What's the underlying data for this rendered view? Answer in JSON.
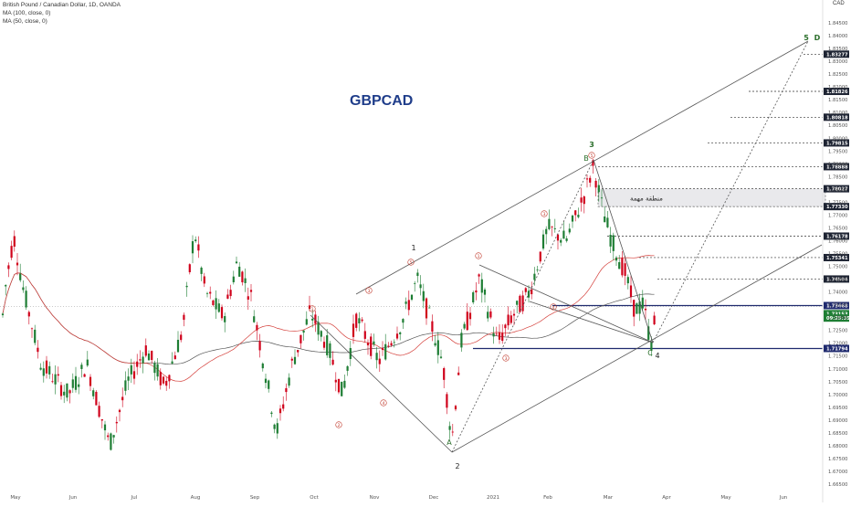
{
  "header": {
    "symbol_line": "British Pound / Canadian Dollar, 1D, OANDA",
    "ma1": "MA (100, close, 0)",
    "ma2": "MA (50, close, 0)",
    "currency": "CAD"
  },
  "chart_data": {
    "type": "candlestick",
    "title": "GBPCAD",
    "ylim": [
      1.65,
      1.85
    ],
    "y_ticks": [
      "1.66500",
      "1.67000",
      "1.67500",
      "1.68000",
      "1.68500",
      "1.69000",
      "1.69500",
      "1.70000",
      "1.70500",
      "1.71000",
      "1.71500",
      "1.72000",
      "1.72500",
      "1.73000",
      "1.73500",
      "1.74000",
      "1.74500",
      "1.75000",
      "1.75500",
      "1.76000",
      "1.76500",
      "1.77000",
      "1.77500",
      "1.78000",
      "1.78500",
      "1.79000",
      "1.79500",
      "1.80000",
      "1.80500",
      "1.81000",
      "1.81500",
      "1.82000",
      "1.82500",
      "1.83000",
      "1.83500",
      "1.84000",
      "1.84500"
    ],
    "x_ticks": [
      "May",
      "Jun",
      "Jul",
      "Aug",
      "Sep",
      "Oct",
      "Nov",
      "Dec",
      "2021",
      "Feb",
      "Mar",
      "Apr",
      "May",
      "Jun"
    ],
    "level_labels": [
      {
        "text": "1.83277",
        "value": 1.83277,
        "style": "dark"
      },
      {
        "text": "1.81826",
        "value": 1.81826,
        "style": "dark"
      },
      {
        "text": "1.80818",
        "value": 1.80818,
        "style": "dark"
      },
      {
        "text": "1.79815",
        "value": 1.79815,
        "style": "dark"
      },
      {
        "text": "1.78888",
        "value": 1.78888,
        "style": "dark"
      },
      {
        "text": "1.78027",
        "value": 1.78027,
        "style": "dark"
      },
      {
        "text": "1.77330",
        "value": 1.7733,
        "style": "dark"
      },
      {
        "text": "1.76178",
        "value": 1.76178,
        "style": "dark"
      },
      {
        "text": "1.75341",
        "value": 1.75341,
        "style": "dark"
      },
      {
        "text": "1.74504",
        "value": 1.74504,
        "style": "dark"
      },
      {
        "text": "1.73468",
        "value": 1.73468,
        "style": "navy"
      },
      {
        "text": "1.73153",
        "value": 1.73153,
        "style": "green"
      },
      {
        "text": "09:25:35",
        "value": 1.7298,
        "style": "green"
      },
      {
        "text": "1.71794",
        "value": 1.71794,
        "style": "navy"
      }
    ],
    "arabic_zone_label": "منطقة مهمة",
    "wave_labels": [
      "1",
      "2",
      "3",
      "4",
      "5"
    ],
    "pattern_labels": [
      "A",
      "B",
      "C",
      "D"
    ],
    "circled_labels": [
      "1",
      "2",
      "3",
      "4",
      "5"
    ],
    "series": [
      {
        "name": "MA (100, close, 0)",
        "color": "#555555"
      },
      {
        "name": "MA (50, close, 0)",
        "color": "#d43f3a"
      }
    ],
    "candle_up_color": "#1e7e34",
    "candle_down_color": "#d0021b"
  }
}
